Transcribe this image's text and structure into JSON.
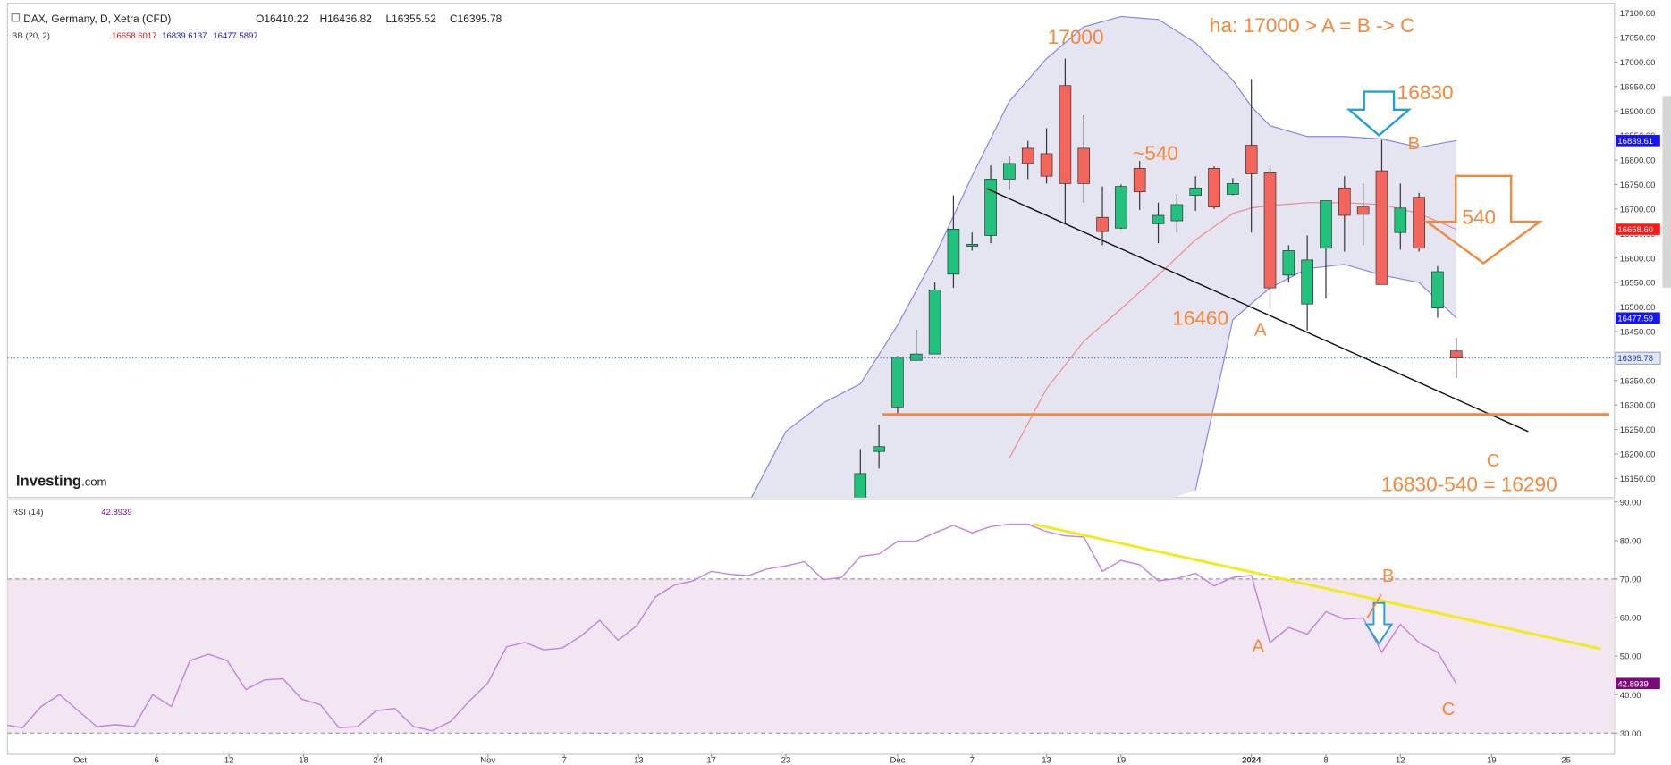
{
  "header": {
    "symbol": "DAX, Germany, D, Xetra (CFD)",
    "ohlc": [
      "O16410.22",
      "H16436.82",
      "L16355.52",
      "C16395.78"
    ],
    "bb": "BB (20, 2)",
    "bb_values": [
      "16658.6017",
      "16839.6137",
      "16477.5897"
    ],
    "rsi": "RSI (14)",
    "logo": "Investing",
    "logo_suffix": ".com"
  },
  "annotations": {
    "peak": "17000",
    "hypothesis": "ha: 17000 > A = B -> C",
    "b_level": "16830",
    "b": "B",
    "move": "~540",
    "move_target": "540",
    "a_level": "16460",
    "a": "A",
    "c": "C",
    "target": "16830-540 = 16290",
    "rsi_b": "B",
    "rsi_a": "A",
    "rsi_c": "C"
  },
  "chart_data": [
    {
      "type": "candlestick",
      "x": [
        -2,
        -1,
        0,
        1,
        2,
        3,
        4,
        5,
        6,
        7,
        8,
        9,
        10,
        11,
        12,
        13,
        14,
        15,
        16,
        17,
        18,
        19,
        20,
        21,
        22,
        23,
        24,
        25,
        26,
        27,
        28,
        29,
        30
      ],
      "open": [
        16100,
        16205,
        16296,
        16391,
        16404,
        16567,
        16624,
        16646,
        16761,
        16824,
        16813,
        16952,
        16824,
        16683,
        16661,
        16783,
        16670,
        16676,
        16728,
        16783,
        16730,
        16830,
        16774,
        16565,
        16506,
        16620,
        16743,
        16704,
        16778,
        16652,
        16724,
        16498,
        16410.22
      ],
      "high": [
        16210,
        16260,
        16400,
        16454,
        16550,
        16728,
        16652,
        16789,
        16809,
        16839,
        16865,
        17007,
        16891,
        16746,
        16750,
        16798,
        16713,
        16730,
        16767,
        16787,
        16763,
        16965,
        16789,
        16626,
        16646,
        16717,
        16767,
        16752,
        16841,
        16752,
        16733,
        16583,
        16436.82
      ],
      "low": [
        16080,
        16170,
        16283,
        16391,
        16404,
        16539,
        16615,
        16630,
        16739,
        16761,
        16752,
        16670,
        16713,
        16626,
        16659,
        16698,
        16630,
        16652,
        16696,
        16700,
        16728,
        16652,
        16496,
        16550,
        16452,
        16517,
        16613,
        16626,
        16546,
        16617,
        16613,
        16478,
        16355.52
      ],
      "close": [
        16160,
        16215,
        16398,
        16404,
        16535,
        16659,
        16628,
        16761,
        16793,
        16793,
        16767,
        16752,
        16752,
        16654,
        16746,
        16735,
        16687,
        16709,
        16743,
        16704,
        16752,
        16772,
        16539,
        16615,
        16596,
        16717,
        16687,
        16689,
        16546,
        16702,
        16620,
        16572,
        16395.78
      ],
      "up_color": "#22c27c",
      "down_color": "#f4665c",
      "xlim": [
        -47.8,
        38.5
      ],
      "ylim": [
        16111,
        17120
      ],
      "yticks": [
        {
          "value": 16150,
          "label": "16150.00"
        },
        {
          "value": 16200,
          "label": "16200.00"
        },
        {
          "value": 16250,
          "label": "16250.00"
        },
        {
          "value": 16300,
          "label": "16300.00"
        },
        {
          "value": 16350,
          "label": "16350.00"
        },
        {
          "value": 16400,
          "label": "16400.00"
        },
        {
          "value": 16450,
          "label": "16450.00"
        },
        {
          "value": 16500,
          "label": "16500.00"
        },
        {
          "value": 16550,
          "label": "16550.00"
        },
        {
          "value": 16600,
          "label": "16600.00"
        },
        {
          "value": 16650,
          "label": "16650.00"
        },
        {
          "value": 16700,
          "label": "16700.00"
        },
        {
          "value": 16750,
          "label": "16750.00"
        },
        {
          "value": 16800,
          "label": "16800.00"
        },
        {
          "value": 16850,
          "label": "16850.00"
        },
        {
          "value": 16900,
          "label": "16900.00"
        },
        {
          "value": 16950,
          "label": "16950.00"
        },
        {
          "value": 17000,
          "label": "17000.00"
        },
        {
          "value": 17050,
          "label": "17050.00"
        },
        {
          "value": 17100,
          "label": "17100.00"
        }
      ],
      "bands": {
        "x": [
          -8,
          -6,
          -4,
          -2,
          0,
          2,
          4,
          6,
          8,
          10,
          12,
          14,
          16,
          18,
          19,
          20,
          22,
          24,
          26,
          28,
          30
        ],
        "upper": [
          16100,
          16246,
          16304,
          16343,
          16463,
          16604,
          16767,
          16920,
          17007,
          17072,
          17093,
          17087,
          17039,
          16963,
          16909,
          16870,
          16848,
          16848,
          16843,
          16826,
          16839.61
        ],
        "middle": [
          null,
          null,
          null,
          null,
          null,
          null,
          null,
          16191,
          16333,
          16430,
          16496,
          16565,
          16637,
          16691,
          16702,
          16707,
          16713,
          16713,
          16709,
          16691,
          16658.6
        ],
        "lower": [
          null,
          null,
          null,
          null,
          null,
          null,
          null,
          null,
          null,
          null,
          null,
          null,
          16126,
          16474,
          16507,
          16539,
          16578,
          16587,
          16565,
          16550,
          16477.59
        ],
        "line_color": "#8585e6",
        "middle_color": "#ef8a8a",
        "fill": "#e5e5f1"
      },
      "price_labels": [
        {
          "value": 16839.61,
          "label": "16839.61",
          "color": "#1414ff",
          "text_color": "#ffffff"
        },
        {
          "value": 16658.6,
          "label": "16658.60",
          "color": "#ff1717",
          "text_color": "#ffffff"
        },
        {
          "value": 16477.59,
          "label": "16477.59",
          "color": "#1414ff",
          "text_color": "#ffffff"
        },
        {
          "value": 16395.78,
          "label": "16395.78",
          "color": "#dfe6f5",
          "text_color": "#1f3f99",
          "line": true
        }
      ]
    },
    {
      "type": "line",
      "x": [
        -48,
        -47,
        -46,
        -45,
        -44,
        -43,
        -42,
        -41,
        -40,
        -39,
        -38,
        -37,
        -36,
        -35,
        -34,
        -33,
        -32,
        -31,
        -30,
        -29,
        -28,
        -27,
        -26,
        -25,
        -24,
        -23,
        -22,
        -21,
        -20,
        -19,
        -18,
        -17,
        -16,
        -15,
        -14,
        -13,
        -12,
        -11,
        -10,
        -9,
        -8,
        -7,
        -6,
        -5,
        -4,
        -3,
        -2,
        -1,
        0,
        1,
        2,
        3,
        4,
        5,
        6,
        7,
        8,
        9,
        10,
        11,
        12,
        13,
        14,
        15,
        16,
        17,
        18,
        19,
        20,
        21,
        22,
        23,
        24,
        25,
        26,
        27,
        28,
        29,
        30
      ],
      "values": [
        32.2,
        31.4,
        36.9,
        40.0,
        35.8,
        31.7,
        32.2,
        31.7,
        40.0,
        36.9,
        48.8,
        50.5,
        48.8,
        41.3,
        43.8,
        44.1,
        38.8,
        37.4,
        31.4,
        31.7,
        35.8,
        36.4,
        31.7,
        30.6,
        33.0,
        38.3,
        43.0,
        52.4,
        53.5,
        51.6,
        52.1,
        55.2,
        59.3,
        54.1,
        57.9,
        65.4,
        68.4,
        69.5,
        72.0,
        71.2,
        70.9,
        72.6,
        73.4,
        74.5,
        69.8,
        70.4,
        75.9,
        76.5,
        79.8,
        79.8,
        82.0,
        83.9,
        82.0,
        83.6,
        84.2,
        84.2,
        82.3,
        81.2,
        80.9,
        72.0,
        74.8,
        73.7,
        69.5,
        70.1,
        71.5,
        68.2,
        70.4,
        70.9,
        53.5,
        57.4,
        55.7,
        61.5,
        59.6,
        59.9,
        51.0,
        58.2,
        53.5,
        51.0,
        42.8939
      ],
      "color": "#c483dc",
      "xlim": [
        -47.8,
        38.5
      ],
      "ylim": [
        24.5,
        90.6
      ],
      "yticks": [
        {
          "value": 30,
          "label": "30.00"
        },
        {
          "value": 40,
          "label": "40.00"
        },
        {
          "value": 50,
          "label": "50.00"
        },
        {
          "value": 60,
          "label": "60.00"
        },
        {
          "value": 70,
          "label": "70.00"
        },
        {
          "value": 80,
          "label": "80.00"
        },
        {
          "value": 90,
          "label": "90.00"
        }
      ],
      "xticks": [
        {
          "value": -43.9,
          "label": "Oct"
        },
        {
          "value": -39.8,
          "label": "6"
        },
        {
          "value": -35.9,
          "label": "12"
        },
        {
          "value": -31.9,
          "label": "18"
        },
        {
          "value": -27.9,
          "label": "24"
        },
        {
          "value": -22,
          "label": "Nov"
        },
        {
          "value": -17.9,
          "label": "7"
        },
        {
          "value": -13.9,
          "label": "13"
        },
        {
          "value": -10,
          "label": "17"
        },
        {
          "value": -6,
          "label": "23"
        },
        {
          "value": 0,
          "label": "Dec"
        },
        {
          "value": 4,
          "label": "7"
        },
        {
          "value": 8,
          "label": "13"
        },
        {
          "value": 12,
          "label": "19"
        },
        {
          "value": 19,
          "label": "2024"
        },
        {
          "value": 23,
          "label": "8"
        },
        {
          "value": 27,
          "label": "12"
        },
        {
          "value": 31.9,
          "label": "19"
        },
        {
          "value": 35.9,
          "label": "25"
        }
      ],
      "band": [
        30,
        70
      ],
      "band_color": "#f2e6f3",
      "value_label": {
        "value": 42.8939,
        "label": "42.8939",
        "color": "#7d0a7d",
        "text_color": "#ffffff"
      }
    }
  ]
}
